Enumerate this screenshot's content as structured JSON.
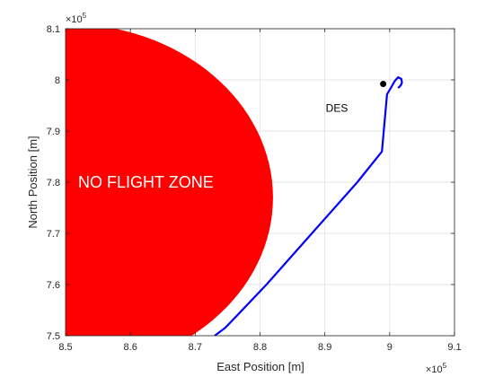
{
  "chart_data": {
    "type": "line",
    "title": "",
    "xlabel": "East Position [m]",
    "ylabel": "North Position [m]",
    "x_exponent_label": "×10",
    "x_exponent_power": "5",
    "y_exponent_label": "×10",
    "y_exponent_power": "5",
    "xlim": [
      850000,
      910000
    ],
    "ylim": [
      750000,
      810000
    ],
    "x_ticks": [
      850000,
      860000,
      870000,
      880000,
      890000,
      900000,
      910000
    ],
    "x_tick_labels": [
      "8.5",
      "8.6",
      "8.7",
      "8.8",
      "8.9",
      "9",
      "9.1"
    ],
    "y_ticks": [
      750000,
      760000,
      770000,
      780000,
      790000,
      800000,
      810000
    ],
    "y_tick_labels": [
      "7.5",
      "7.6",
      "7.7",
      "7.8",
      "7.9",
      "8",
      "8.1"
    ],
    "grid": true,
    "series": [
      {
        "color": "#0000ff",
        "x": [
          873000,
          874600,
          876500,
          881000,
          888000,
          895000,
          898800,
          899600,
          900300,
          900800,
          901300,
          901800,
          901900,
          901700,
          901300
        ],
        "y": [
          750000,
          751500,
          754000,
          760000,
          770000,
          780000,
          786000,
          797200,
          798700,
          799800,
          800500,
          800200,
          799500,
          798900,
          798400
        ]
      }
    ],
    "markers": [
      {
        "label": "",
        "x": 899000,
        "y": 799200,
        "color": "#000000"
      }
    ],
    "annotations": [
      {
        "text": "DES",
        "x": 890000,
        "y": 794500
      },
      {
        "text": "NO FLIGHT ZONE",
        "x": 850700,
        "y": 780000
      }
    ],
    "no_flight_zone": {
      "center_x": 850000,
      "center_y": 777000,
      "radius_x": 32000,
      "radius_y": 34000,
      "color": "#ff0000",
      "label": "NO FLIGHT ZONE"
    }
  }
}
